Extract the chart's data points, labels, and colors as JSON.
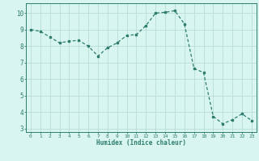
{
  "x": [
    0,
    1,
    2,
    3,
    4,
    5,
    6,
    7,
    8,
    9,
    10,
    11,
    12,
    13,
    14,
    15,
    16,
    17,
    18,
    19,
    20,
    21,
    22,
    23
  ],
  "y": [
    9.0,
    8.9,
    8.55,
    8.2,
    8.3,
    8.35,
    8.0,
    7.4,
    7.9,
    8.2,
    8.65,
    8.7,
    9.25,
    10.0,
    10.05,
    10.15,
    9.35,
    6.65,
    6.4,
    3.75,
    3.3,
    3.55,
    3.9,
    3.5
  ],
  "xlabel": "Humidex (Indice chaleur)",
  "ylabel": "",
  "title": "",
  "line_color": "#2e7d6e",
  "bg_color": "#d8f5f0",
  "grid_color": "#b8ddd8",
  "tick_color": "#2e7d6e",
  "xlim": [
    -0.5,
    23.5
  ],
  "ylim": [
    2.8,
    10.6
  ],
  "yticks": [
    3,
    4,
    5,
    6,
    7,
    8,
    9,
    10
  ],
  "xticks": [
    0,
    1,
    2,
    3,
    4,
    5,
    6,
    7,
    8,
    9,
    10,
    11,
    12,
    13,
    14,
    15,
    16,
    17,
    18,
    19,
    20,
    21,
    22,
    23
  ]
}
